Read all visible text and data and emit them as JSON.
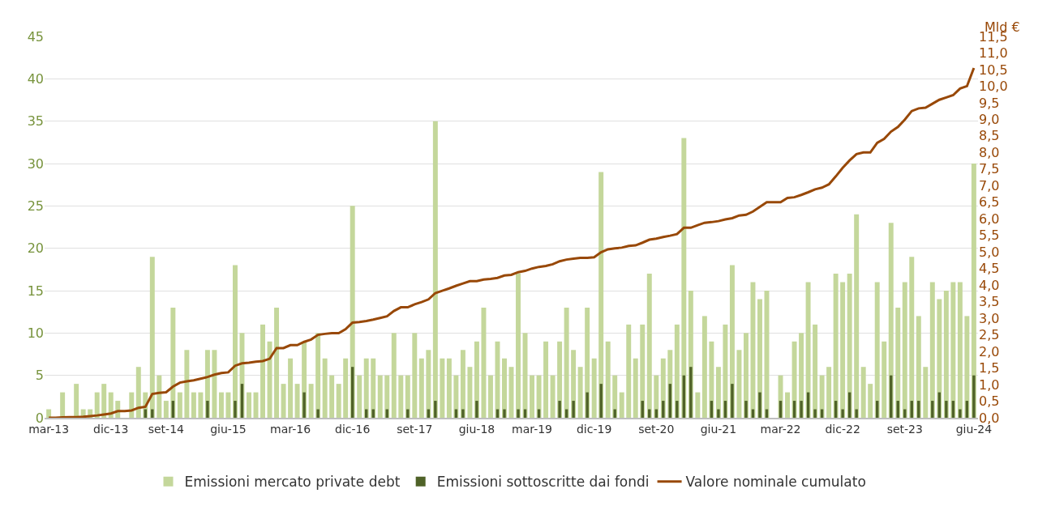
{
  "chart_data": {
    "type": "bar",
    "y2label": "Mld €",
    "categories": [
      "mar-13",
      null,
      null,
      null,
      null,
      null,
      null,
      null,
      null,
      "dic-13",
      null,
      null,
      null,
      null,
      null,
      null,
      null,
      "set-14",
      null,
      null,
      null,
      null,
      null,
      null,
      null,
      null,
      "giu-15",
      null,
      null,
      null,
      null,
      null,
      null,
      null,
      null,
      "mar-16",
      null,
      null,
      null,
      null,
      null,
      null,
      null,
      null,
      "dic-16",
      null,
      null,
      null,
      null,
      null,
      null,
      null,
      null,
      "set-17",
      null,
      null,
      null,
      null,
      null,
      null,
      null,
      null,
      "giu-18",
      null,
      null,
      null,
      null,
      null,
      null,
      null,
      "mar-19",
      null,
      null,
      null,
      null,
      null,
      null,
      null,
      null,
      "dic-19",
      null,
      null,
      null,
      null,
      null,
      null,
      null,
      null,
      "set-20",
      null,
      null,
      null,
      null,
      null,
      null,
      null,
      null,
      "giu-21",
      null,
      null,
      null,
      null,
      null,
      null,
      null,
      null,
      "mar-22",
      null,
      null,
      null,
      null,
      null,
      null,
      null,
      null,
      "dic-22",
      null,
      null,
      null,
      null,
      null,
      null,
      null,
      null,
      "set-23",
      null,
      null,
      null,
      null,
      null,
      null,
      null,
      null,
      null,
      "giu-24"
    ],
    "series": [
      {
        "name": "Emissioni mercato private debt",
        "color": "#c4d79b",
        "values": [
          1,
          0,
          3,
          0,
          4,
          1,
          1,
          3,
          4,
          3,
          2,
          null,
          3,
          6,
          3,
          19,
          5,
          2,
          13,
          3,
          8,
          3,
          3,
          8,
          8,
          3,
          3,
          18,
          10,
          3,
          3,
          11,
          9,
          13,
          4,
          7,
          4,
          9,
          4,
          10,
          7,
          5,
          4,
          7,
          25,
          5,
          7,
          7,
          5,
          5,
          10,
          5,
          5,
          10,
          7,
          8,
          35,
          7,
          7,
          5,
          8,
          6,
          9,
          13,
          5,
          9,
          7,
          6,
          17,
          10,
          5,
          5,
          9,
          5,
          9,
          13,
          8,
          6,
          13,
          7,
          29,
          9,
          5,
          3,
          11,
          7,
          11,
          17,
          5,
          7,
          8,
          11,
          33,
          15,
          3,
          12,
          9,
          6,
          11,
          18,
          8,
          10,
          16,
          14,
          15,
          0,
          5,
          3,
          9,
          10,
          16,
          11,
          5,
          6,
          17,
          16,
          17,
          24,
          6,
          4,
          16,
          9,
          23,
          13,
          16,
          19,
          12,
          6,
          16,
          14,
          15,
          16,
          16,
          12,
          30
        ]
      },
      {
        "name": "Emissioni sottoscritte dai fondi",
        "color": "#4f6228",
        "values": [
          0,
          0,
          0,
          0,
          0,
          0,
          0,
          0,
          0,
          0,
          0,
          0,
          0,
          0,
          1,
          1,
          0,
          0,
          2,
          0,
          0,
          0,
          0,
          2,
          0,
          0,
          0,
          2,
          4,
          0,
          0,
          0,
          0,
          0,
          0,
          0,
          0,
          3,
          0,
          1,
          0,
          0,
          0,
          0,
          6,
          0,
          1,
          1,
          0,
          1,
          0,
          0,
          1,
          0,
          0,
          1,
          2,
          0,
          0,
          1,
          1,
          0,
          2,
          0,
          0,
          1,
          1,
          0,
          1,
          1,
          0,
          1,
          0,
          0,
          2,
          1,
          2,
          0,
          3,
          0,
          4,
          0,
          1,
          0,
          0,
          0,
          2,
          1,
          1,
          2,
          4,
          2,
          5,
          6,
          0,
          0,
          2,
          1,
          2,
          4,
          0,
          2,
          1,
          3,
          1,
          0,
          2,
          0,
          2,
          2,
          3,
          1,
          1,
          0,
          2,
          1,
          3,
          1,
          0,
          0,
          2,
          0,
          5,
          2,
          1,
          2,
          2,
          0,
          2,
          3,
          2,
          2,
          1,
          2,
          5
        ]
      },
      {
        "name": "Valore nominale cumulato",
        "color": "#984807",
        "type": "line",
        "axis": "y2",
        "values": [
          0,
          0,
          0.01,
          0.02,
          0.02,
          0.03,
          0.05,
          0.07,
          0.1,
          0.13,
          0.2,
          0.2,
          0.22,
          0.3,
          0.33,
          0.72,
          0.75,
          0.77,
          0.94,
          1.06,
          1.1,
          1.13,
          1.18,
          1.23,
          1.3,
          1.35,
          1.37,
          1.57,
          1.64,
          1.66,
          1.69,
          1.71,
          1.78,
          2.1,
          2.1,
          2.19,
          2.19,
          2.29,
          2.36,
          2.5,
          2.53,
          2.55,
          2.55,
          2.67,
          2.87,
          2.89,
          2.92,
          2.96,
          3.01,
          3.06,
          3.22,
          3.33,
          3.33,
          3.42,
          3.49,
          3.57,
          3.76,
          3.83,
          3.9,
          3.98,
          4.05,
          4.12,
          4.12,
          4.17,
          4.19,
          4.22,
          4.29,
          4.31,
          4.39,
          4.43,
          4.5,
          4.55,
          4.58,
          4.63,
          4.72,
          4.77,
          4.8,
          4.82,
          4.82,
          4.84,
          4.99,
          5.08,
          5.11,
          5.13,
          5.18,
          5.2,
          5.28,
          5.37,
          5.4,
          5.45,
          5.49,
          5.54,
          5.73,
          5.73,
          5.81,
          5.88,
          5.9,
          5.93,
          5.98,
          6.02,
          6.1,
          6.12,
          6.22,
          6.36,
          6.5,
          6.5,
          6.5,
          6.63,
          6.65,
          6.72,
          6.8,
          6.89,
          6.94,
          7.04,
          7.28,
          7.54,
          7.76,
          7.95,
          8.0,
          8.0,
          8.29,
          8.41,
          8.63,
          8.77,
          8.99,
          9.25,
          9.33,
          9.35,
          9.47,
          9.59,
          9.66,
          9.73,
          9.93,
          10.0,
          10.55
        ]
      }
    ],
    "ylim": [
      0,
      45
    ],
    "yticks": [
      0,
      5,
      10,
      15,
      20,
      25,
      30,
      35,
      40,
      45
    ],
    "y2lim": [
      0,
      11.5
    ],
    "y2ticks": [
      {
        "value": 0,
        "label": "0,0"
      },
      {
        "value": 0.5,
        "label": "0,5"
      },
      {
        "value": 1,
        "label": "1,0"
      },
      {
        "value": 1.5,
        "label": "1,5"
      },
      {
        "value": 2,
        "label": "2,0"
      },
      {
        "value": 2.5,
        "label": "2,5"
      },
      {
        "value": 3,
        "label": "3,0"
      },
      {
        "value": 3.5,
        "label": "3,5"
      },
      {
        "value": 4,
        "label": "4,0"
      },
      {
        "value": 4.5,
        "label": "4,5"
      },
      {
        "value": 5,
        "label": "5,0"
      },
      {
        "value": 5.5,
        "label": "5,5"
      },
      {
        "value": 6,
        "label": "6,0"
      },
      {
        "value": 6.5,
        "label": "6,5"
      },
      {
        "value": 7,
        "label": "7,0"
      },
      {
        "value": 7.5,
        "label": "7,5"
      },
      {
        "value": 8,
        "label": "8,0"
      },
      {
        "value": 8.5,
        "label": "8,5"
      },
      {
        "value": 9,
        "label": "9,0"
      },
      {
        "value": 9.5,
        "label": "9,5"
      },
      {
        "value": 10,
        "label": "10,0"
      },
      {
        "value": 10.5,
        "label": "10,5"
      },
      {
        "value": 11,
        "label": "11,0"
      },
      {
        "value": 11.5,
        "label": "11,5"
      }
    ],
    "grid": "y",
    "legend": "bottom"
  }
}
